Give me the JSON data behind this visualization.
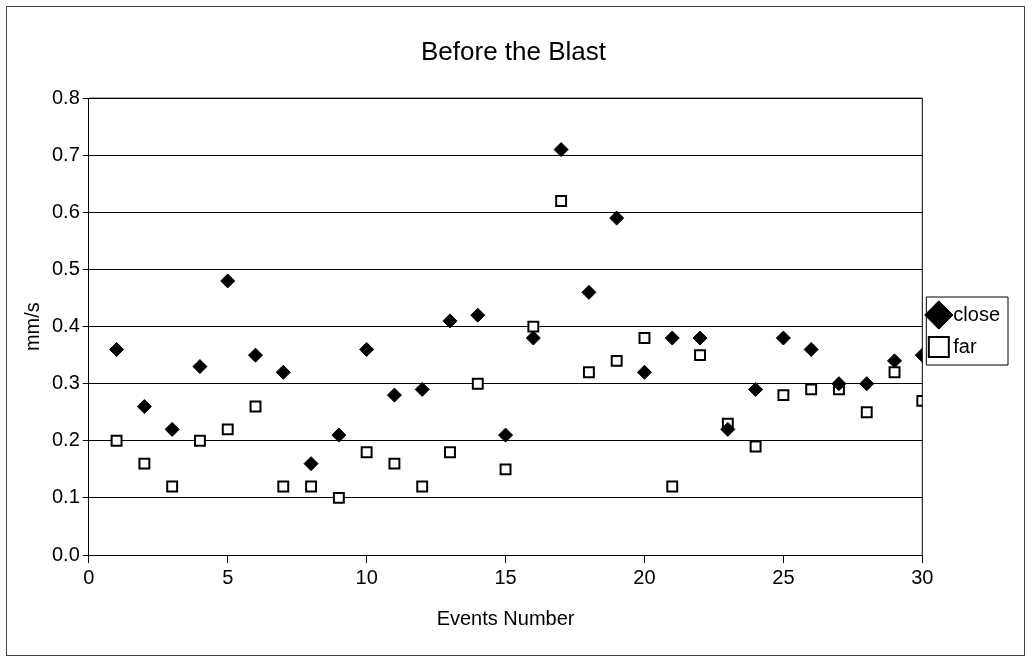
{
  "chart_data": {
    "type": "scatter",
    "title": "Before the Blast",
    "xlabel": "Events Number",
    "ylabel": "mm/s",
    "x": [
      1,
      2,
      3,
      4,
      5,
      6,
      7,
      8,
      9,
      10,
      11,
      12,
      13,
      14,
      15,
      16,
      17,
      18,
      19,
      20,
      21,
      22,
      23,
      24,
      25,
      26,
      27,
      28,
      29,
      30
    ],
    "series": [
      {
        "name": "close",
        "color": "#000000",
        "marker": "diamond",
        "values": [
          0.36,
          0.26,
          0.22,
          0.33,
          0.48,
          0.35,
          0.32,
          0.16,
          0.21,
          0.36,
          0.28,
          0.29,
          0.41,
          0.42,
          0.21,
          0.38,
          0.71,
          0.46,
          0.59,
          0.32,
          0.38,
          0.38,
          0.22,
          0.29,
          0.38,
          0.36,
          0.3,
          0.3,
          0.34,
          0.35
        ]
      },
      {
        "name": "far",
        "color": "#000000",
        "marker": "square",
        "values": [
          0.2,
          0.16,
          0.12,
          0.2,
          0.22,
          0.26,
          0.12,
          0.12,
          0.1,
          0.18,
          0.16,
          0.12,
          0.18,
          0.3,
          0.15,
          0.4,
          0.62,
          0.32,
          0.34,
          0.38,
          0.12,
          0.35,
          0.23,
          0.19,
          0.28,
          0.29,
          0.29,
          0.25,
          0.32,
          0.27
        ]
      }
    ],
    "xlim": [
      0,
      30
    ],
    "xticks": [
      0,
      5,
      10,
      15,
      20,
      25,
      30
    ],
    "ylim": [
      0,
      0.8
    ],
    "yticks": [
      {
        "value": 0,
        "label": "0.0"
      },
      {
        "value": 0.1,
        "label": "0.1"
      },
      {
        "value": 0.2,
        "label": "0.2"
      },
      {
        "value": 0.3,
        "label": "0.3"
      },
      {
        "value": 0.4,
        "label": "0.4"
      },
      {
        "value": 0.5,
        "label": "0.5"
      },
      {
        "value": 0.6,
        "label": "0.6"
      },
      {
        "value": 0.7,
        "label": "0.7"
      },
      {
        "value": 0.8,
        "label": "0.8"
      }
    ],
    "grid": "y",
    "legend": "right"
  }
}
